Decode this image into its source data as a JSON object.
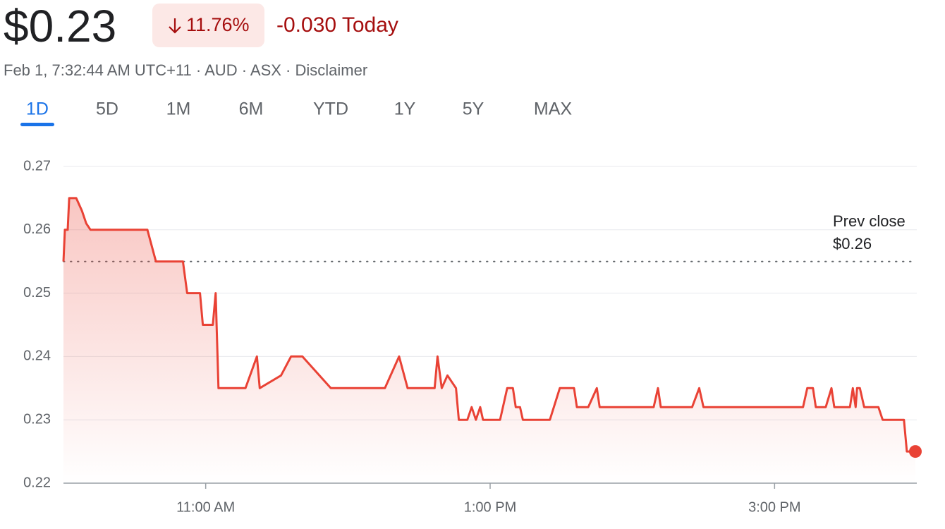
{
  "header": {
    "price": "$0.23",
    "change_percent": "11.76%",
    "change_today": "-0.030 Today",
    "meta": "Feb 1, 7:32:44 AM UTC+11 · AUD · ASX · Disclaimer"
  },
  "tabs": {
    "items": [
      "1D",
      "5D",
      "1M",
      "6M",
      "YTD",
      "1Y",
      "5Y",
      "MAX"
    ],
    "selected": "1D"
  },
  "chart_data": {
    "type": "line",
    "color": "#e94235",
    "x": [
      10.0,
      10.01,
      10.03,
      10.04,
      10.09,
      10.13,
      10.16,
      10.19,
      10.59,
      10.65,
      10.84,
      10.87,
      10.96,
      10.98,
      11.05,
      11.07,
      11.09,
      11.28,
      11.36,
      11.38,
      11.53,
      11.6,
      11.68,
      11.88,
      12.26,
      12.36,
      12.42,
      12.61,
      12.63,
      12.66,
      12.7,
      12.76,
      12.78,
      12.84,
      12.87,
      12.9,
      12.93,
      12.95,
      13.07,
      13.12,
      13.16,
      13.18,
      13.21,
      13.23,
      13.42,
      13.49,
      13.59,
      13.61,
      13.69,
      13.75,
      13.77,
      14.15,
      14.18,
      14.2,
      14.42,
      14.47,
      14.5,
      15.2,
      15.23,
      15.27,
      15.29,
      15.36,
      15.4,
      15.42,
      15.53,
      15.55,
      15.57,
      15.58,
      15.6,
      15.63,
      15.73,
      15.76,
      15.91,
      15.93,
      15.99
    ],
    "values": [
      0.255,
      0.26,
      0.26,
      0.265,
      0.265,
      0.263,
      0.261,
      0.26,
      0.26,
      0.255,
      0.255,
      0.25,
      0.25,
      0.245,
      0.245,
      0.25,
      0.235,
      0.235,
      0.24,
      0.235,
      0.237,
      0.24,
      0.24,
      0.235,
      0.235,
      0.24,
      0.235,
      0.235,
      0.24,
      0.235,
      0.237,
      0.235,
      0.23,
      0.23,
      0.232,
      0.23,
      0.232,
      0.23,
      0.23,
      0.235,
      0.235,
      0.232,
      0.232,
      0.23,
      0.23,
      0.235,
      0.235,
      0.232,
      0.232,
      0.235,
      0.232,
      0.232,
      0.235,
      0.232,
      0.232,
      0.235,
      0.232,
      0.232,
      0.235,
      0.235,
      0.232,
      0.232,
      0.235,
      0.232,
      0.232,
      0.235,
      0.232,
      0.235,
      0.235,
      0.232,
      0.232,
      0.23,
      0.23,
      0.225,
      0.225
    ],
    "xlim": [
      10,
      16
    ],
    "xticks": [
      {
        "value": 11,
        "label": "11:00 AM"
      },
      {
        "value": 13,
        "label": "1:00 PM"
      },
      {
        "value": 15,
        "label": "3:00 PM"
      }
    ],
    "ylim": [
      0.22,
      0.27
    ],
    "yticks": [
      0.22,
      0.23,
      0.24,
      0.25,
      0.26,
      0.27
    ],
    "grid": true,
    "prev_close": {
      "title": "Prev close",
      "value": 0.255,
      "label": "$0.26"
    }
  }
}
